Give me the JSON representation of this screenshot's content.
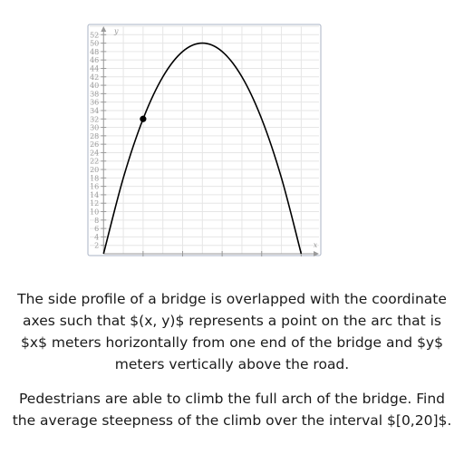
{
  "chart_data": {
    "type": "line",
    "title": "",
    "xlabel": "x",
    "ylabel": "y",
    "xlim": [
      -7,
      109
    ],
    "ylim": [
      0,
      54
    ],
    "x_ticks": [
      20,
      40,
      60,
      80,
      100
    ],
    "y_ticks": [
      2,
      4,
      6,
      8,
      10,
      12,
      14,
      16,
      18,
      20,
      22,
      24,
      26,
      28,
      30,
      32,
      34,
      36,
      38,
      40,
      42,
      44,
      46,
      48,
      50,
      52
    ],
    "grid": true,
    "series": [
      {
        "name": "",
        "x": [
          0,
          10,
          20,
          30,
          40,
          50,
          60,
          70,
          80,
          90,
          100
        ],
        "y": [
          0,
          18,
          32,
          42,
          48,
          50,
          48,
          42,
          32,
          18,
          0
        ]
      }
    ],
    "highlight_point": {
      "x": 20,
      "y": 32
    }
  },
  "problem": {
    "paragraph1": "The side profile of a bridge is overlapped with the coordinate axes such that $(x, y)$ represents a point on the arc that is $x$ meters horizontally from one end of the bridge and $y$ meters vertically above the road.",
    "paragraph2": "Pedestrians are able to climb the full arch of the bridge. Find the average steepness of the climb over the interval $[0,20]$."
  }
}
